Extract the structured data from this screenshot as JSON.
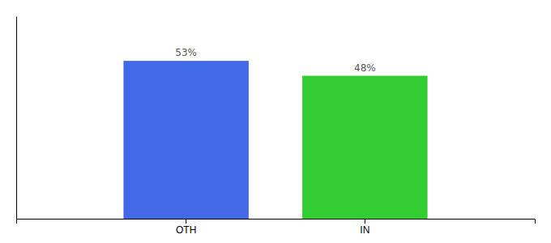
{
  "chart_data": {
    "type": "bar",
    "categories": [
      "OTH",
      "IN"
    ],
    "values": [
      53,
      48
    ],
    "value_labels": [
      "53%",
      "48%"
    ],
    "colors": [
      "#4169e8",
      "#33cc33"
    ],
    "ylim": [
      0,
      68
    ],
    "data_labels": true,
    "tick_labels": "x"
  }
}
